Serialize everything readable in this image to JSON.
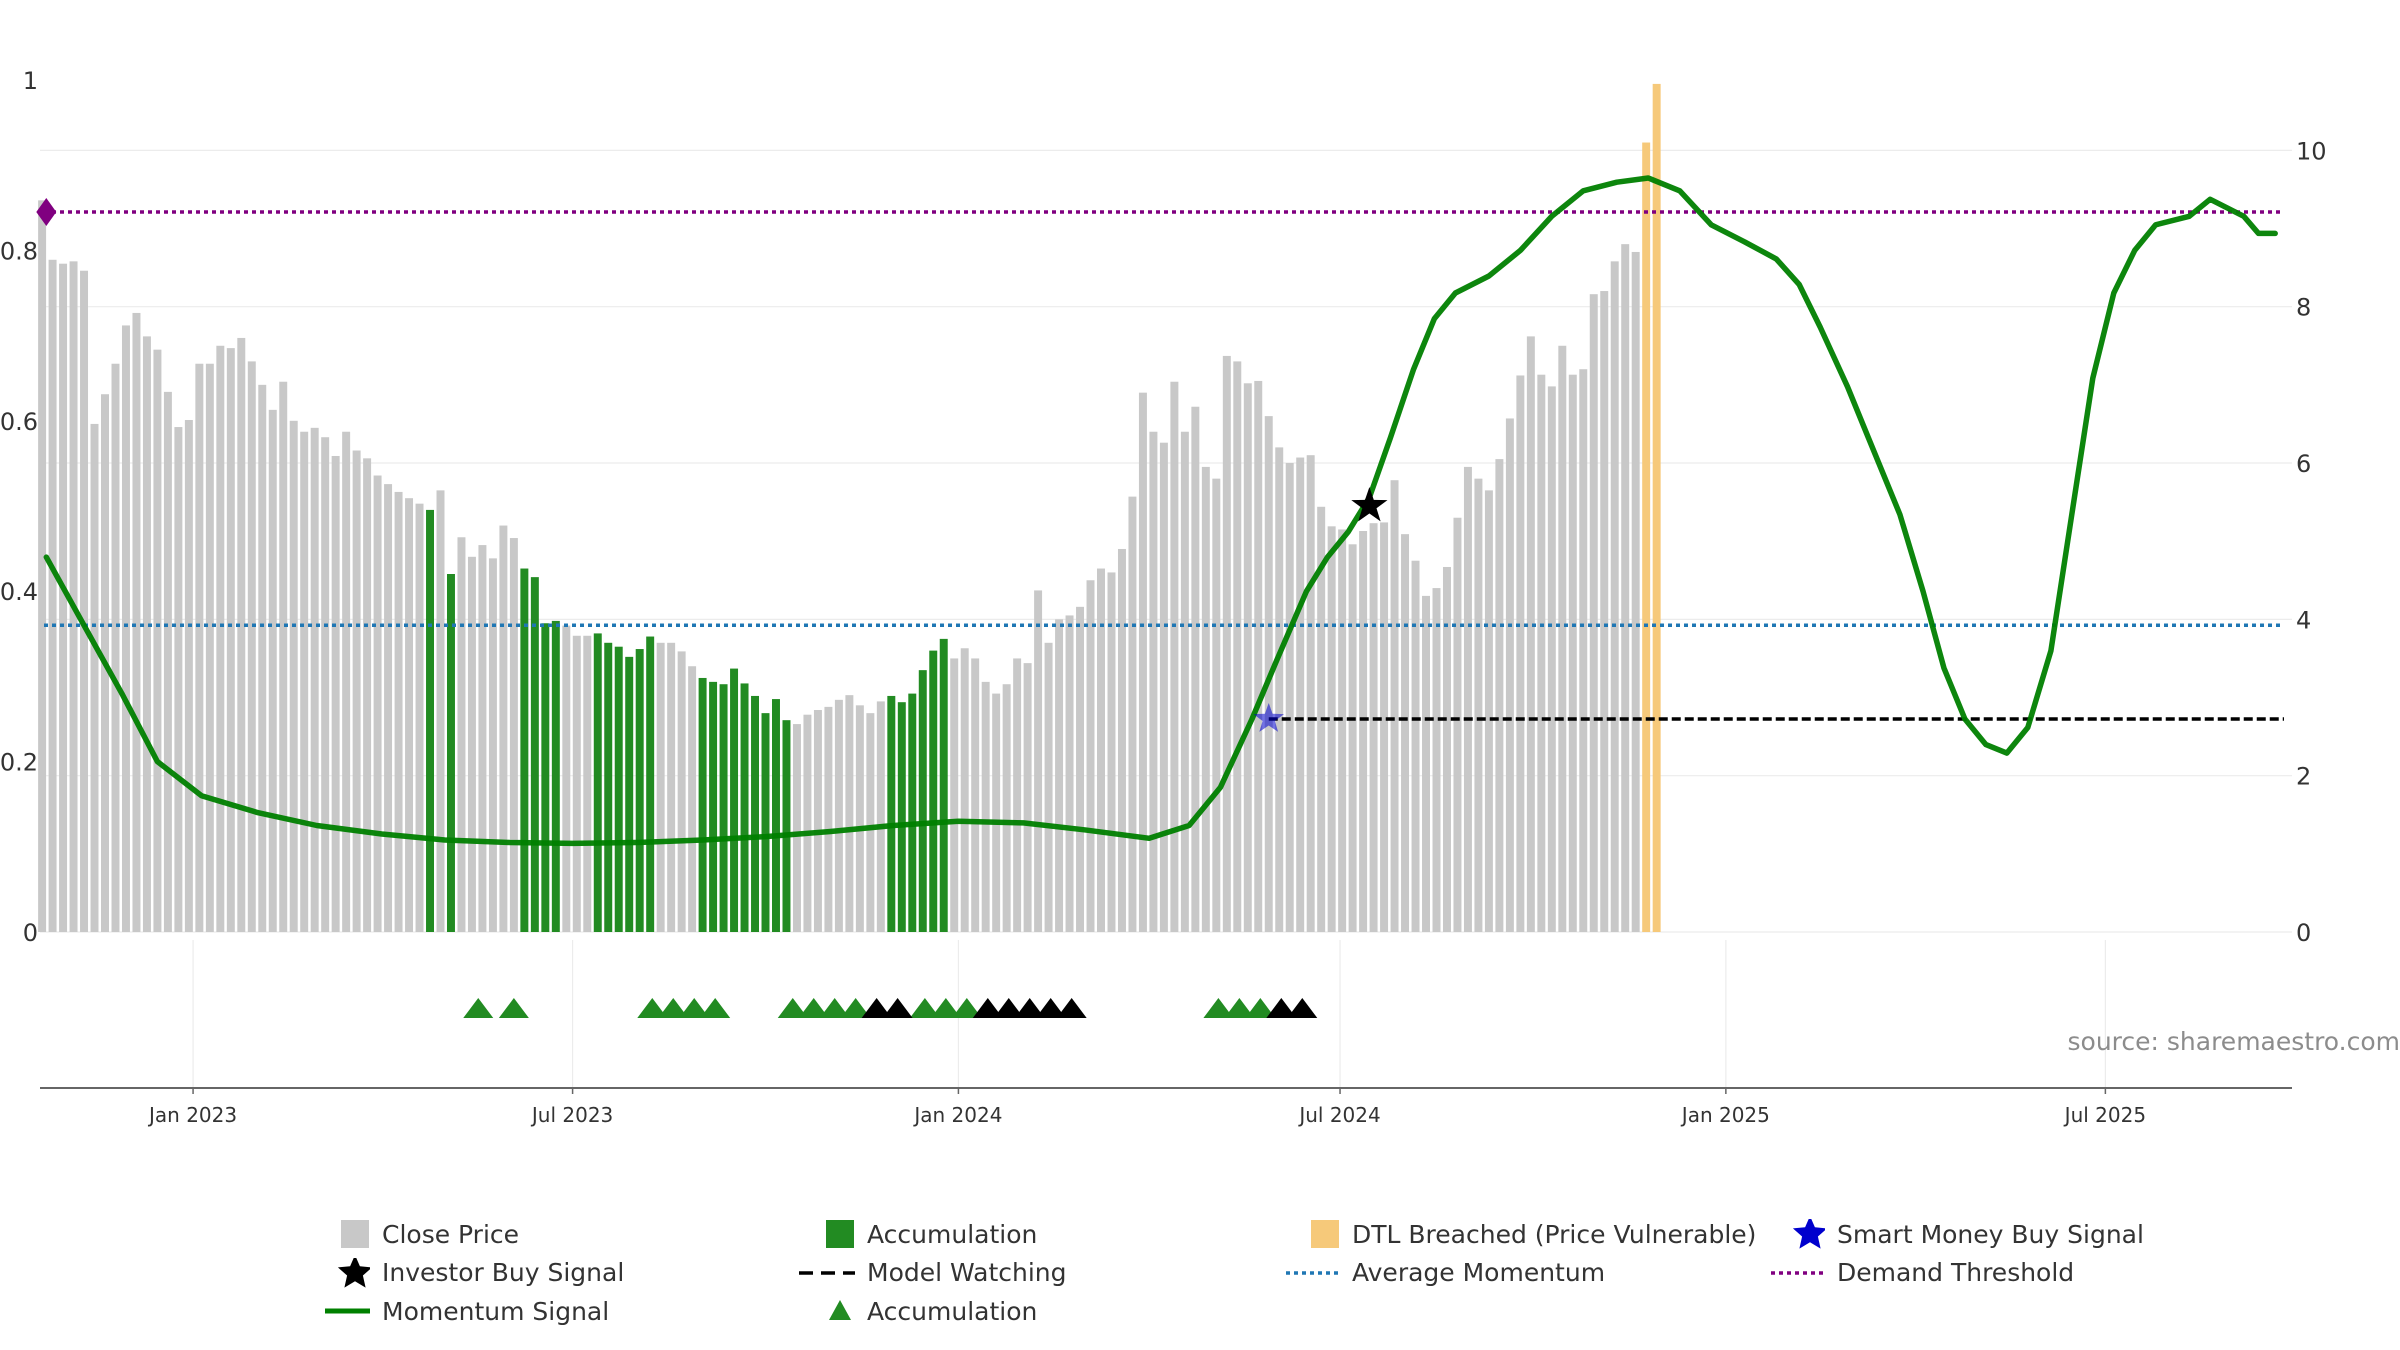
{
  "chart_data": {
    "type": "bar",
    "title": "",
    "xlabel": "",
    "ylabel": "",
    "left_axis": {
      "ylim": [
        0,
        1
      ],
      "ticks": [
        0,
        0.2,
        0.4,
        0.6,
        0.8,
        1
      ],
      "tick_labels": [
        "0",
        "0.2",
        "0.4",
        "0.6",
        "0.8",
        "1"
      ]
    },
    "right_axis": {
      "ylim": [
        0,
        10.9
      ],
      "ticks": [
        0,
        2,
        4,
        6,
        8,
        10
      ],
      "tick_labels": [
        "0",
        "2",
        "4",
        "6",
        "8",
        "10"
      ]
    },
    "x_range": [
      "2022-10-20",
      "2025-09-28"
    ],
    "x_ticks": [
      {
        "date": "2023-01-01",
        "label": "Jan 2023"
      },
      {
        "date": "2023-07-01",
        "label": "Jul 2023"
      },
      {
        "date": "2024-01-01",
        "label": "Jan 2024"
      },
      {
        "date": "2024-07-01",
        "label": "Jul 2024"
      },
      {
        "date": "2025-01-01",
        "label": "Jan 2025"
      },
      {
        "date": "2025-07-01",
        "label": "Jul 2025"
      }
    ],
    "grid": true,
    "legend_position": "bottom",
    "annotation": "source: sharemaestro.com",
    "colors": {
      "close": "#c8c8c8",
      "accumulation": "#228b22",
      "dtl": "#f6c97a",
      "momentum": "#008000",
      "avg": "#1f77b4",
      "threshold": "#800080",
      "model": "#000000",
      "smart": "#0000cd"
    },
    "bar_start_date": "2022-10-21",
    "bar_interval_days": 5,
    "bars": [
      [
        9.36,
        "c"
      ],
      [
        8.6,
        "c"
      ],
      [
        8.55,
        "c"
      ],
      [
        8.58,
        "c"
      ],
      [
        8.46,
        "c"
      ],
      [
        6.5,
        "c"
      ],
      [
        6.88,
        "c"
      ],
      [
        7.27,
        "c"
      ],
      [
        7.76,
        "c"
      ],
      [
        7.92,
        "c"
      ],
      [
        7.62,
        "c"
      ],
      [
        7.45,
        "c"
      ],
      [
        6.91,
        "c"
      ],
      [
        6.46,
        "c"
      ],
      [
        6.55,
        "c"
      ],
      [
        7.27,
        "c"
      ],
      [
        7.27,
        "c"
      ],
      [
        7.5,
        "c"
      ],
      [
        7.47,
        "c"
      ],
      [
        7.6,
        "c"
      ],
      [
        7.3,
        "c"
      ],
      [
        7.0,
        "c"
      ],
      [
        6.68,
        "c"
      ],
      [
        7.04,
        "c"
      ],
      [
        6.54,
        "c"
      ],
      [
        6.4,
        "c"
      ],
      [
        6.45,
        "c"
      ],
      [
        6.33,
        "c"
      ],
      [
        6.09,
        "c"
      ],
      [
        6.4,
        "c"
      ],
      [
        6.16,
        "c"
      ],
      [
        6.06,
        "c"
      ],
      [
        5.84,
        "c"
      ],
      [
        5.73,
        "c"
      ],
      [
        5.63,
        "c"
      ],
      [
        5.55,
        "c"
      ],
      [
        5.48,
        "c"
      ],
      [
        5.4,
        "a"
      ],
      [
        5.65,
        "c"
      ],
      [
        4.58,
        "a"
      ],
      [
        5.05,
        "c"
      ],
      [
        4.8,
        "c"
      ],
      [
        4.95,
        "c"
      ],
      [
        4.78,
        "c"
      ],
      [
        5.2,
        "c"
      ],
      [
        5.04,
        "c"
      ],
      [
        4.65,
        "a"
      ],
      [
        4.54,
        "a"
      ],
      [
        3.95,
        "a"
      ],
      [
        3.98,
        "a"
      ],
      [
        3.92,
        "c"
      ],
      [
        3.79,
        "c"
      ],
      [
        3.79,
        "c"
      ],
      [
        3.82,
        "a"
      ],
      [
        3.7,
        "a"
      ],
      [
        3.65,
        "a"
      ],
      [
        3.52,
        "a"
      ],
      [
        3.62,
        "a"
      ],
      [
        3.78,
        "a"
      ],
      [
        3.7,
        "c"
      ],
      [
        3.7,
        "c"
      ],
      [
        3.59,
        "c"
      ],
      [
        3.4,
        "c"
      ],
      [
        3.25,
        "a"
      ],
      [
        3.2,
        "a"
      ],
      [
        3.17,
        "a"
      ],
      [
        3.37,
        "a"
      ],
      [
        3.18,
        "a"
      ],
      [
        3.02,
        "a"
      ],
      [
        2.8,
        "a"
      ],
      [
        2.98,
        "a"
      ],
      [
        2.71,
        "a"
      ],
      [
        2.66,
        "c"
      ],
      [
        2.78,
        "c"
      ],
      [
        2.84,
        "c"
      ],
      [
        2.88,
        "c"
      ],
      [
        2.97,
        "c"
      ],
      [
        3.03,
        "c"
      ],
      [
        2.9,
        "c"
      ],
      [
        2.8,
        "c"
      ],
      [
        2.95,
        "c"
      ],
      [
        3.02,
        "a"
      ],
      [
        2.94,
        "a"
      ],
      [
        3.05,
        "a"
      ],
      [
        3.35,
        "a"
      ],
      [
        3.6,
        "a"
      ],
      [
        3.75,
        "a"
      ],
      [
        3.5,
        "c"
      ],
      [
        3.63,
        "c"
      ],
      [
        3.5,
        "c"
      ],
      [
        3.2,
        "c"
      ],
      [
        3.05,
        "c"
      ],
      [
        3.17,
        "c"
      ],
      [
        3.5,
        "c"
      ],
      [
        3.44,
        "c"
      ],
      [
        4.37,
        "c"
      ],
      [
        3.7,
        "c"
      ],
      [
        4.0,
        "c"
      ],
      [
        4.05,
        "c"
      ],
      [
        4.16,
        "c"
      ],
      [
        4.5,
        "c"
      ],
      [
        4.65,
        "c"
      ],
      [
        4.6,
        "c"
      ],
      [
        4.9,
        "c"
      ],
      [
        5.57,
        "c"
      ],
      [
        6.9,
        "c"
      ],
      [
        6.4,
        "c"
      ],
      [
        6.26,
        "c"
      ],
      [
        7.04,
        "c"
      ],
      [
        6.4,
        "c"
      ],
      [
        6.72,
        "c"
      ],
      [
        5.95,
        "c"
      ],
      [
        5.8,
        "c"
      ],
      [
        7.37,
        "c"
      ],
      [
        7.3,
        "c"
      ],
      [
        7.02,
        "c"
      ],
      [
        7.05,
        "c"
      ],
      [
        6.6,
        "c"
      ],
      [
        6.2,
        "c"
      ],
      [
        6.0,
        "c"
      ],
      [
        6.07,
        "c"
      ],
      [
        6.1,
        "c"
      ],
      [
        5.44,
        "c"
      ],
      [
        5.19,
        "c"
      ],
      [
        5.15,
        "c"
      ],
      [
        4.96,
        "c"
      ],
      [
        5.13,
        "c"
      ],
      [
        5.23,
        "c"
      ],
      [
        5.24,
        "c"
      ],
      [
        5.78,
        "c"
      ],
      [
        5.09,
        "c"
      ],
      [
        4.75,
        "c"
      ],
      [
        4.3,
        "c"
      ],
      [
        4.4,
        "c"
      ],
      [
        4.67,
        "c"
      ],
      [
        5.3,
        "c"
      ],
      [
        5.95,
        "c"
      ],
      [
        5.8,
        "c"
      ],
      [
        5.65,
        "c"
      ],
      [
        6.05,
        "c"
      ],
      [
        6.57,
        "c"
      ],
      [
        7.12,
        "c"
      ],
      [
        7.62,
        "c"
      ],
      [
        7.13,
        "c"
      ],
      [
        6.98,
        "c"
      ],
      [
        7.5,
        "c"
      ],
      [
        7.13,
        "c"
      ],
      [
        7.2,
        "c"
      ],
      [
        8.16,
        "c"
      ],
      [
        8.2,
        "c"
      ],
      [
        8.58,
        "c"
      ],
      [
        8.8,
        "c"
      ],
      [
        8.7,
        "c"
      ],
      [
        10.1,
        "d"
      ],
      [
        10.85,
        "d"
      ]
    ],
    "series": [
      {
        "name": "Momentum Signal",
        "axis": "left",
        "points": [
          [
            "2022-10-23",
            0.44
          ],
          [
            "2022-11-10",
            0.36
          ],
          [
            "2022-11-28",
            0.28
          ],
          [
            "2022-12-15",
            0.2
          ],
          [
            "2023-01-05",
            0.16
          ],
          [
            "2023-02-01",
            0.14
          ],
          [
            "2023-03-01",
            0.125
          ],
          [
            "2023-04-01",
            0.115
          ],
          [
            "2023-05-01",
            0.108
          ],
          [
            "2023-06-01",
            0.105
          ],
          [
            "2023-07-01",
            0.104
          ],
          [
            "2023-08-01",
            0.105
          ],
          [
            "2023-09-01",
            0.108
          ],
          [
            "2023-10-01",
            0.112
          ],
          [
            "2023-11-01",
            0.118
          ],
          [
            "2023-12-01",
            0.125
          ],
          [
            "2024-01-01",
            0.13
          ],
          [
            "2024-02-01",
            0.128
          ],
          [
            "2024-03-01",
            0.12
          ],
          [
            "2024-04-01",
            0.11
          ],
          [
            "2024-04-20",
            0.125
          ],
          [
            "2024-05-05",
            0.17
          ],
          [
            "2024-05-20",
            0.25
          ],
          [
            "2024-06-01",
            0.32
          ],
          [
            "2024-06-15",
            0.4
          ],
          [
            "2024-06-25",
            0.44
          ],
          [
            "2024-07-05",
            0.47
          ],
          [
            "2024-07-15",
            0.51
          ],
          [
            "2024-07-25",
            0.58
          ],
          [
            "2024-08-05",
            0.66
          ],
          [
            "2024-08-15",
            0.72
          ],
          [
            "2024-08-25",
            0.75
          ],
          [
            "2024-09-10",
            0.77
          ],
          [
            "2024-09-25",
            0.8
          ],
          [
            "2024-10-10",
            0.84
          ],
          [
            "2024-10-25",
            0.87
          ],
          [
            "2024-11-10",
            0.88
          ],
          [
            "2024-11-25",
            0.885
          ],
          [
            "2024-12-10",
            0.87
          ],
          [
            "2024-12-25",
            0.83
          ],
          [
            "2025-01-10",
            0.81
          ],
          [
            "2025-01-25",
            0.79
          ],
          [
            "2025-02-05",
            0.76
          ],
          [
            "2025-02-15",
            0.71
          ],
          [
            "2025-02-28",
            0.64
          ],
          [
            "2025-03-10",
            0.58
          ],
          [
            "2025-03-25",
            0.49
          ],
          [
            "2025-04-05",
            0.4
          ],
          [
            "2025-04-15",
            0.31
          ],
          [
            "2025-04-25",
            0.25
          ],
          [
            "2025-05-05",
            0.22
          ],
          [
            "2025-05-15",
            0.21
          ],
          [
            "2025-05-25",
            0.24
          ],
          [
            "2025-06-05",
            0.33
          ],
          [
            "2025-06-15",
            0.49
          ],
          [
            "2025-06-25",
            0.65
          ],
          [
            "2025-07-05",
            0.75
          ],
          [
            "2025-07-15",
            0.8
          ],
          [
            "2025-07-25",
            0.83
          ],
          [
            "2025-08-10",
            0.84
          ],
          [
            "2025-08-20",
            0.86
          ],
          [
            "2025-08-28",
            0.85
          ],
          [
            "2025-09-05",
            0.84
          ],
          [
            "2025-09-12",
            0.82
          ],
          [
            "2025-09-20",
            0.82
          ]
        ]
      },
      {
        "name": "Average Momentum",
        "axis": "left",
        "value": 0.36
      },
      {
        "name": "Demand Threshold",
        "axis": "left",
        "value": 0.845
      },
      {
        "name": "Model Watching",
        "axis": "left",
        "value": 0.25,
        "start_date": "2024-05-28"
      }
    ],
    "markers": [
      {
        "name": "Investor Buy Signal",
        "date": "2024-07-15",
        "value": 0.5,
        "axis": "left"
      },
      {
        "name": "Smart Money Buy Signal",
        "date": "2024-05-28",
        "value": 0.25,
        "axis": "left"
      },
      {
        "name": "Demand Threshold marker",
        "date": "2022-10-23",
        "value": 0.845,
        "axis": "left"
      }
    ],
    "triangles": {
      "green": [
        "2023-05-17",
        "2023-06-03",
        "2023-08-08",
        "2023-08-18",
        "2023-08-28",
        "2023-09-07",
        "2023-10-14",
        "2023-10-24",
        "2023-11-03",
        "2023-11-13",
        "2023-12-16",
        "2023-12-26",
        "2024-01-05",
        "2024-05-04",
        "2024-05-14",
        "2024-05-24"
      ],
      "black": [
        "2023-11-23",
        "2023-12-03",
        "2024-01-15",
        "2024-01-25",
        "2024-02-04",
        "2024-02-14",
        "2024-02-24",
        "2024-06-03",
        "2024-06-13"
      ]
    },
    "legend": [
      {
        "label": "Close Price",
        "symbol": "square",
        "color": "#c8c8c8"
      },
      {
        "label": "Investor Buy Signal",
        "symbol": "star",
        "color": "#000000"
      },
      {
        "label": "Momentum Signal",
        "symbol": "line",
        "color": "#008000"
      },
      {
        "label": "Accumulation",
        "symbol": "square",
        "color": "#228b22"
      },
      {
        "label": "Model Watching",
        "symbol": "dash",
        "color": "#000000"
      },
      {
        "label": "Accumulation",
        "symbol": "triangle",
        "color": "#228b22"
      },
      {
        "label": "DTL Breached (Price Vulnerable)",
        "symbol": "square",
        "color": "#f6c97a"
      },
      {
        "label": "Average Momentum",
        "symbol": "dotted",
        "color": "#1f77b4"
      },
      {
        "label": "Smart Money Buy Signal",
        "symbol": "star",
        "color": "#0000cd"
      },
      {
        "label": "Demand Threshold",
        "symbol": "dotted",
        "color": "#800080"
      }
    ]
  }
}
